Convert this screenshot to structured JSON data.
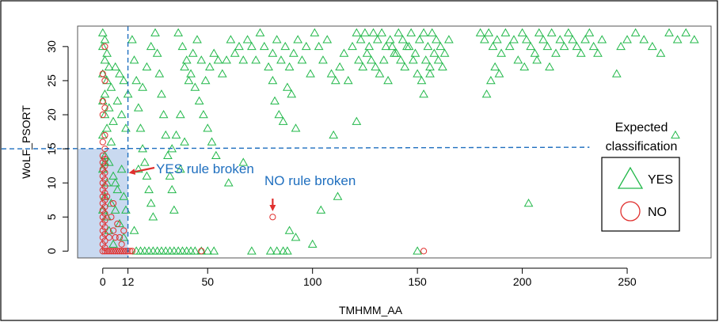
{
  "chart_data": {
    "type": "scatter",
    "xlabel": "TMHMM_AA",
    "ylabel": "WoLF_PSORT",
    "xlim": [
      -12,
      290
    ],
    "ylim": [
      -1,
      33
    ],
    "xticks": [
      0,
      50,
      100,
      150,
      200,
      250
    ],
    "extra_xtick": {
      "value": 12,
      "label": "12"
    },
    "yticks": [
      0,
      5,
      10,
      15,
      20,
      25,
      30
    ],
    "grid": false,
    "threshold_lines": {
      "x": 12,
      "y": 15,
      "style": "dashed",
      "color": "#1f6fbf"
    },
    "shaded_region": {
      "x": [
        -12,
        12
      ],
      "y": [
        -1,
        15
      ],
      "color": "#c9d9f0"
    },
    "legend": {
      "title_lines": [
        "Expected",
        "classification"
      ],
      "placement": "right",
      "entries": [
        {
          "label": "YES",
          "marker": "triangle",
          "color": "#22b84a"
        },
        {
          "label": "NO",
          "marker": "circle",
          "color": "#e0302e"
        }
      ]
    },
    "annotations": [
      {
        "text": "YES rule broken",
        "color": "#1f6fbf",
        "arrow_color": "#e0302e",
        "target": [
          12,
          11.5
        ]
      },
      {
        "text": "NO rule broken",
        "color": "#1f6fbf",
        "arrow_color": "#e0302e",
        "target": [
          81,
          5.5
        ]
      }
    ],
    "series": [
      {
        "name": "YES",
        "marker": "triangle",
        "color": "#22b84a",
        "points": [
          [
            0,
            32
          ],
          [
            1,
            31
          ],
          [
            0,
            30
          ],
          [
            2,
            29
          ],
          [
            1,
            28
          ],
          [
            3,
            27
          ],
          [
            0,
            26
          ],
          [
            2,
            25
          ],
          [
            4,
            24
          ],
          [
            1,
            23
          ],
          [
            0,
            22
          ],
          [
            3,
            21
          ],
          [
            1,
            20
          ],
          [
            5,
            19
          ],
          [
            2,
            18
          ],
          [
            0,
            17
          ],
          [
            4,
            16
          ],
          [
            1,
            14
          ],
          [
            3,
            13
          ],
          [
            0,
            12
          ],
          [
            5,
            11
          ],
          [
            2,
            10
          ],
          [
            7,
            9
          ],
          [
            1,
            8
          ],
          [
            4,
            7
          ],
          [
            0,
            6
          ],
          [
            6,
            6
          ],
          [
            2,
            5
          ],
          [
            8,
            4
          ],
          [
            3,
            3
          ],
          [
            10,
            2
          ],
          [
            5,
            1
          ],
          [
            1,
            13
          ],
          [
            9,
            12
          ],
          [
            6,
            10
          ],
          [
            10,
            8
          ],
          [
            11,
            6
          ],
          [
            8,
            26
          ],
          [
            10,
            25
          ],
          [
            6,
            27
          ],
          [
            9,
            20
          ],
          [
            11,
            18
          ],
          [
            7,
            22
          ],
          [
            12,
            23
          ],
          [
            14,
            31
          ],
          [
            15,
            28
          ],
          [
            16,
            25
          ],
          [
            17,
            21
          ],
          [
            18,
            18
          ],
          [
            19,
            15
          ],
          [
            20,
            13
          ],
          [
            21,
            11
          ],
          [
            22,
            9
          ],
          [
            23,
            7
          ],
          [
            24,
            5
          ],
          [
            15,
            3
          ],
          [
            17,
            12
          ],
          [
            19,
            24
          ],
          [
            21,
            27
          ],
          [
            23,
            30
          ],
          [
            25,
            32
          ],
          [
            26,
            29
          ],
          [
            27,
            26
          ],
          [
            28,
            23
          ],
          [
            29,
            20
          ],
          [
            30,
            17
          ],
          [
            31,
            14
          ],
          [
            32,
            11
          ],
          [
            33,
            9
          ],
          [
            34,
            6
          ],
          [
            16,
            0
          ],
          [
            18,
            0
          ],
          [
            20,
            0
          ],
          [
            22,
            0
          ],
          [
            24,
            0
          ],
          [
            26,
            0
          ],
          [
            28,
            0
          ],
          [
            30,
            0
          ],
          [
            32,
            0
          ],
          [
            34,
            0
          ],
          [
            36,
            0
          ],
          [
            38,
            0
          ],
          [
            40,
            0
          ],
          [
            42,
            0
          ],
          [
            44,
            0
          ],
          [
            47,
            0
          ],
          [
            50,
            0
          ],
          [
            53,
            0
          ],
          [
            36,
            32
          ],
          [
            38,
            30
          ],
          [
            40,
            28
          ],
          [
            42,
            26
          ],
          [
            44,
            24
          ],
          [
            46,
            22
          ],
          [
            48,
            20
          ],
          [
            50,
            18
          ],
          [
            52,
            16
          ],
          [
            54,
            14
          ],
          [
            37,
            12
          ],
          [
            39,
            27
          ],
          [
            41,
            25
          ],
          [
            43,
            29
          ],
          [
            45,
            31
          ],
          [
            47,
            28
          ],
          [
            49,
            25
          ],
          [
            51,
            27
          ],
          [
            53,
            29
          ],
          [
            55,
            28
          ],
          [
            57,
            26
          ],
          [
            35,
            17
          ],
          [
            37,
            20
          ],
          [
            39,
            16
          ],
          [
            33,
            15
          ],
          [
            59,
            28
          ],
          [
            61,
            31
          ],
          [
            63,
            29
          ],
          [
            65,
            30
          ],
          [
            67,
            28
          ],
          [
            69,
            31
          ],
          [
            71,
            30
          ],
          [
            73,
            28
          ],
          [
            75,
            32
          ],
          [
            77,
            30
          ],
          [
            79,
            27
          ],
          [
            81,
            29
          ],
          [
            83,
            31
          ],
          [
            85,
            28
          ],
          [
            87,
            30
          ],
          [
            89,
            27
          ],
          [
            91,
            29
          ],
          [
            93,
            31
          ],
          [
            95,
            28
          ],
          [
            97,
            30
          ],
          [
            99,
            26
          ],
          [
            60,
            10
          ],
          [
            67,
            13
          ],
          [
            71,
            0
          ],
          [
            81,
            25
          ],
          [
            82,
            22
          ],
          [
            84,
            20
          ],
          [
            86,
            19
          ],
          [
            88,
            24
          ],
          [
            90,
            23
          ],
          [
            92,
            18
          ],
          [
            89,
            3
          ],
          [
            92,
            2
          ],
          [
            100,
            1
          ],
          [
            80,
            0
          ],
          [
            83,
            0
          ],
          [
            86,
            0
          ],
          [
            88,
            0
          ],
          [
            101,
            32
          ],
          [
            103,
            30
          ],
          [
            105,
            28
          ],
          [
            107,
            31
          ],
          [
            109,
            26
          ],
          [
            111,
            25
          ],
          [
            113,
            27
          ],
          [
            115,
            29
          ],
          [
            117,
            25
          ],
          [
            119,
            30
          ],
          [
            110,
            17
          ],
          [
            121,
            19
          ],
          [
            104,
            6
          ],
          [
            112,
            8
          ],
          [
            121,
            32
          ],
          [
            123,
            31
          ],
          [
            125,
            32
          ],
          [
            127,
            30
          ],
          [
            129,
            32
          ],
          [
            131,
            31
          ],
          [
            133,
            32
          ],
          [
            135,
            30
          ],
          [
            137,
            31
          ],
          [
            139,
            29
          ],
          [
            141,
            32
          ],
          [
            143,
            31
          ],
          [
            145,
            30
          ],
          [
            147,
            32
          ],
          [
            149,
            29
          ],
          [
            151,
            31
          ],
          [
            153,
            32
          ],
          [
            155,
            30
          ],
          [
            157,
            32
          ],
          [
            159,
            31
          ],
          [
            161,
            30
          ],
          [
            163,
            29
          ],
          [
            165,
            31
          ],
          [
            122,
            28
          ],
          [
            124,
            27
          ],
          [
            126,
            29
          ],
          [
            128,
            28
          ],
          [
            130,
            27
          ],
          [
            132,
            26
          ],
          [
            134,
            28
          ],
          [
            136,
            25
          ],
          [
            138,
            30
          ],
          [
            140,
            29
          ],
          [
            142,
            28
          ],
          [
            144,
            27
          ],
          [
            146,
            30
          ],
          [
            148,
            28
          ],
          [
            150,
            26
          ],
          [
            152,
            25
          ],
          [
            154,
            28
          ],
          [
            156,
            27
          ],
          [
            158,
            29
          ],
          [
            160,
            28
          ],
          [
            162,
            27
          ],
          [
            150,
            0
          ],
          [
            153,
            23
          ],
          [
            156,
            26
          ],
          [
            180,
            32
          ],
          [
            182,
            31
          ],
          [
            184,
            32
          ],
          [
            186,
            30
          ],
          [
            188,
            31
          ],
          [
            190,
            29
          ],
          [
            192,
            32
          ],
          [
            194,
            30
          ],
          [
            196,
            31
          ],
          [
            198,
            28
          ],
          [
            200,
            32
          ],
          [
            202,
            31
          ],
          [
            204,
            30
          ],
          [
            206,
            29
          ],
          [
            208,
            32
          ],
          [
            210,
            31
          ],
          [
            212,
            30
          ],
          [
            214,
            32
          ],
          [
            216,
            29
          ],
          [
            218,
            31
          ],
          [
            220,
            30
          ],
          [
            222,
            32
          ],
          [
            224,
            31
          ],
          [
            226,
            30
          ],
          [
            228,
            29
          ],
          [
            230,
            31
          ],
          [
            232,
            32
          ],
          [
            234,
            30
          ],
          [
            236,
            29
          ],
          [
            238,
            31
          ],
          [
            183,
            23
          ],
          [
            185,
            25
          ],
          [
            187,
            27
          ],
          [
            189,
            26
          ],
          [
            201,
            27
          ],
          [
            207,
            28
          ],
          [
            213,
            27
          ],
          [
            203,
            7
          ],
          [
            245,
            26
          ],
          [
            247,
            30
          ],
          [
            250,
            31
          ],
          [
            254,
            32
          ],
          [
            258,
            31
          ],
          [
            262,
            30
          ],
          [
            266,
            29
          ],
          [
            270,
            32
          ],
          [
            274,
            31
          ],
          [
            278,
            32
          ],
          [
            282,
            31
          ],
          [
            273,
            17
          ]
        ]
      },
      {
        "name": "NO",
        "marker": "circle",
        "color": "#e0302e",
        "points": [
          [
            1,
            30
          ],
          [
            0,
            26
          ],
          [
            1,
            25
          ],
          [
            0,
            22
          ],
          [
            1,
            21
          ],
          [
            0,
            20
          ],
          [
            1,
            17
          ],
          [
            0,
            16
          ],
          [
            1,
            15
          ],
          [
            0,
            14
          ],
          [
            1,
            13.5
          ],
          [
            0,
            13
          ],
          [
            1,
            12.5
          ],
          [
            0,
            12
          ],
          [
            1,
            11.5
          ],
          [
            0,
            11
          ],
          [
            1,
            10.5
          ],
          [
            0,
            10
          ],
          [
            1,
            9.5
          ],
          [
            0,
            9
          ],
          [
            1,
            8.5
          ],
          [
            0,
            8
          ],
          [
            1,
            7.5
          ],
          [
            0,
            7
          ],
          [
            1,
            6.5
          ],
          [
            0,
            6
          ],
          [
            1,
            5.5
          ],
          [
            0,
            5
          ],
          [
            1,
            4.5
          ],
          [
            0,
            4
          ],
          [
            1,
            3.5
          ],
          [
            0,
            3
          ],
          [
            1,
            2.5
          ],
          [
            0,
            2
          ],
          [
            1,
            1.5
          ],
          [
            0,
            1
          ],
          [
            1,
            0.5
          ],
          [
            2,
            0
          ],
          [
            3,
            0
          ],
          [
            4,
            0
          ],
          [
            5,
            0
          ],
          [
            6,
            0
          ],
          [
            7,
            0
          ],
          [
            8,
            0
          ],
          [
            9,
            0
          ],
          [
            10,
            0
          ],
          [
            11,
            0
          ],
          [
            12,
            0
          ],
          [
            13,
            0
          ],
          [
            14,
            0
          ],
          [
            0,
            0
          ],
          [
            1,
            0
          ],
          [
            3,
            2
          ],
          [
            5,
            3
          ],
          [
            7,
            4
          ],
          [
            4,
            5
          ],
          [
            6,
            2
          ],
          [
            8,
            2
          ],
          [
            10,
            3
          ],
          [
            9,
            1
          ],
          [
            5,
            7
          ],
          [
            2,
            8
          ],
          [
            47,
            0
          ],
          [
            81,
            5
          ],
          [
            153,
            0
          ]
        ]
      }
    ]
  }
}
